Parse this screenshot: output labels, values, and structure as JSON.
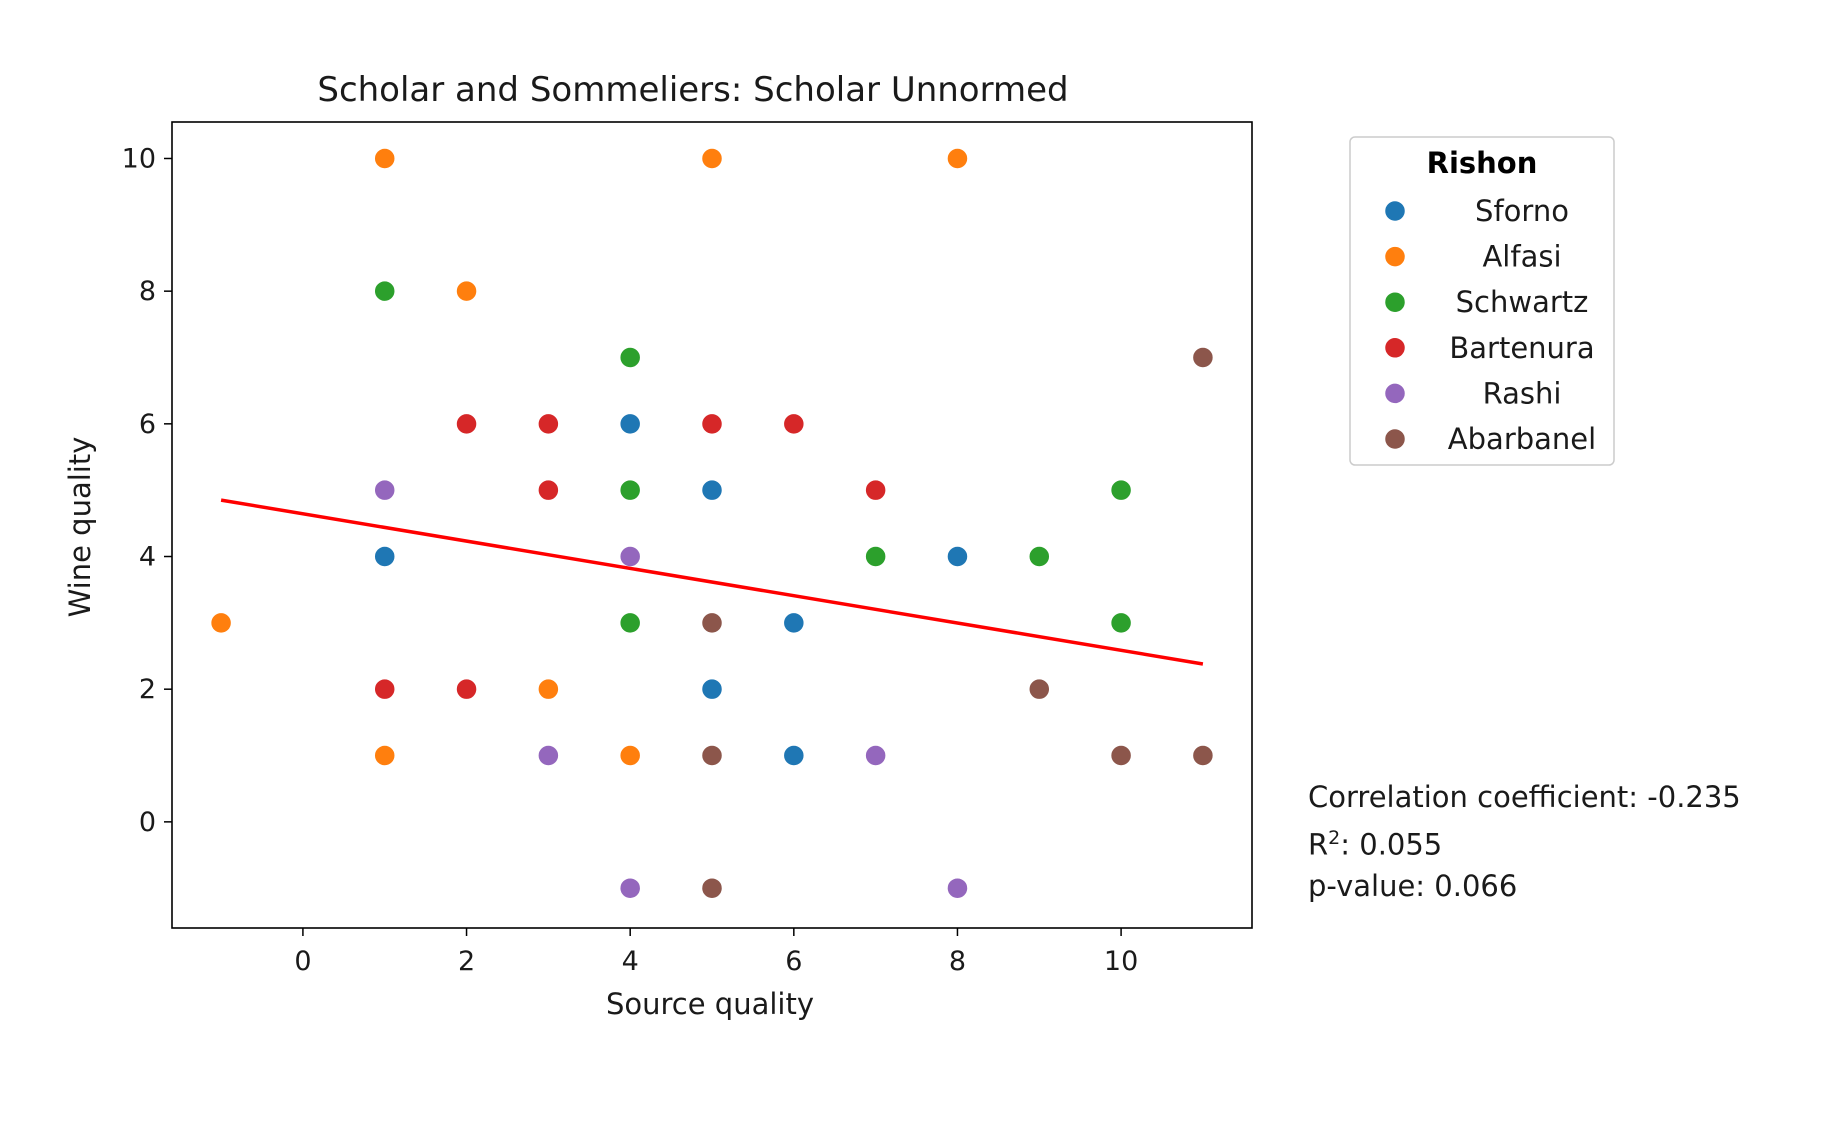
{
  "chart_data": {
    "type": "scatter",
    "title": "Scholar and Sommeliers: Scholar Unnormed",
    "xlabel": "Source quality",
    "ylabel": "Wine quality",
    "xlim": [
      -1.6,
      11.6
    ],
    "ylim": [
      -1.6,
      10.55
    ],
    "xticks": [
      0,
      2,
      4,
      6,
      8,
      10
    ],
    "yticks": [
      0,
      2,
      4,
      6,
      8,
      10
    ],
    "grid": false,
    "legend": {
      "title": "Rishon",
      "placement": "right-top, outside axes"
    },
    "series": [
      {
        "name": "Sforno",
        "color": "#1f77b4",
        "points": [
          [
            1,
            4
          ],
          [
            4,
            6
          ],
          [
            5,
            5
          ],
          [
            6,
            3
          ],
          [
            5,
            2
          ],
          [
            6,
            1
          ],
          [
            8,
            4
          ]
        ]
      },
      {
        "name": "Alfasi",
        "color": "#ff7f0e",
        "points": [
          [
            1,
            10
          ],
          [
            5,
            10
          ],
          [
            8,
            10
          ],
          [
            2,
            8
          ],
          [
            -1,
            3
          ],
          [
            3,
            2
          ],
          [
            1,
            1
          ],
          [
            4,
            1
          ]
        ]
      },
      {
        "name": "Schwartz",
        "color": "#2ca02c",
        "points": [
          [
            1,
            8
          ],
          [
            4,
            7
          ],
          [
            4,
            5
          ],
          [
            7,
            4
          ],
          [
            9,
            4
          ],
          [
            10,
            5
          ],
          [
            4,
            3
          ],
          [
            10,
            3
          ]
        ]
      },
      {
        "name": "Bartenura",
        "color": "#d62728",
        "points": [
          [
            2,
            6
          ],
          [
            3,
            6
          ],
          [
            5,
            6
          ],
          [
            6,
            6
          ],
          [
            3,
            5
          ],
          [
            7,
            5
          ],
          [
            1,
            2
          ],
          [
            2,
            2
          ]
        ]
      },
      {
        "name": "Rashi",
        "color": "#9467bd",
        "points": [
          [
            1,
            5
          ],
          [
            4,
            4
          ],
          [
            3,
            1
          ],
          [
            7,
            1
          ],
          [
            4,
            -1
          ],
          [
            8,
            -1
          ]
        ]
      },
      {
        "name": "Abarbanel",
        "color": "#8c564b",
        "points": [
          [
            11,
            7
          ],
          [
            5,
            3
          ],
          [
            9,
            2
          ],
          [
            5,
            1
          ],
          [
            10,
            1
          ],
          [
            11,
            1
          ],
          [
            5,
            -1
          ]
        ]
      }
    ],
    "regression_line": {
      "color": "#ff0000",
      "x": [
        -1,
        11
      ],
      "y": [
        4.85,
        2.38
      ]
    },
    "annotations": {
      "correlation": "Correlation coefficient: -0.235",
      "r2_label": "R",
      "r2_sup": "2",
      "r2_value": ": 0.055",
      "p_value": "p-value: 0.066"
    }
  }
}
